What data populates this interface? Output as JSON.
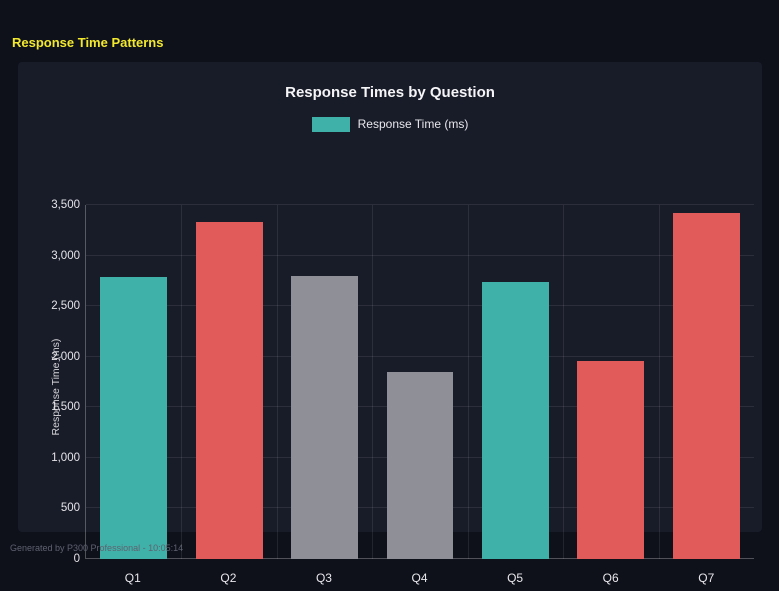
{
  "page": {
    "title": "Response Time Patterns",
    "footer": "Generated by P300 Professional - 10:05:14"
  },
  "colors": {
    "background": "#0e101a",
    "panel": "#181b28",
    "accent_yellow": "#f2e92e",
    "teal": "#3fb1a8",
    "red": "#e25b5b",
    "gray": "#8f8f97"
  },
  "chart_data": {
    "type": "bar",
    "title": "Response Times by Question",
    "legend": [
      {
        "label": "Response Time (ms)",
        "color": "#3fb1a8"
      }
    ],
    "legend_position": "top",
    "categories": [
      "Q1",
      "Q2",
      "Q3",
      "Q4",
      "Q5",
      "Q6",
      "Q7"
    ],
    "values": [
      2790,
      3330,
      2800,
      1850,
      2740,
      1960,
      3420
    ],
    "bar_colors": [
      "#3fb1a8",
      "#e25b5b",
      "#8f8f97",
      "#8f8f97",
      "#3fb1a8",
      "#e25b5b",
      "#e25b5b"
    ],
    "xlabel": "",
    "ylabel": "Response Time (ms)",
    "ylim": [
      0,
      3500
    ],
    "yticks": [
      0,
      500,
      1000,
      1500,
      2000,
      2500,
      3000,
      3500
    ],
    "ytick_labels": [
      "0",
      "500",
      "1,000",
      "1,500",
      "2,000",
      "2,500",
      "3,000",
      "3,500"
    ],
    "grid": true
  }
}
